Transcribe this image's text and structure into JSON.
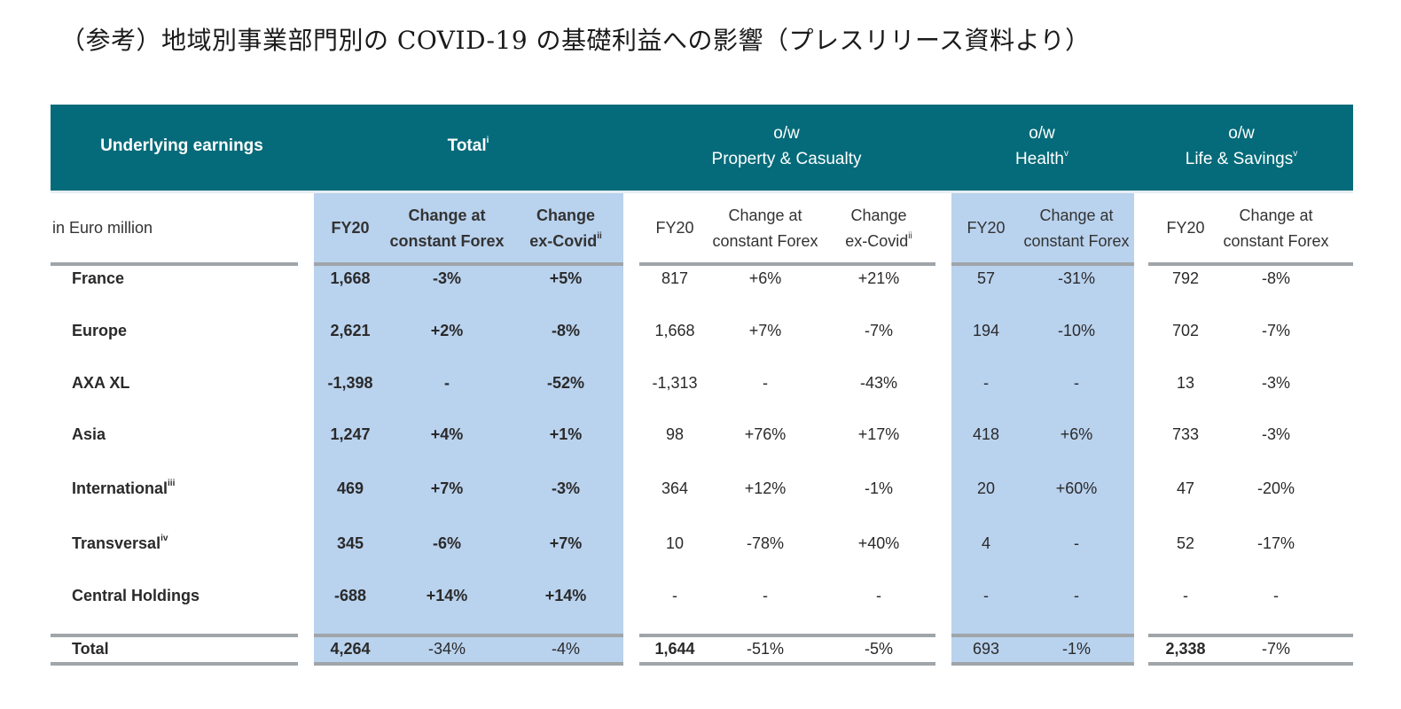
{
  "title": "（参考）地域別事業部門別の COVID-19 の基礎利益への影響（プレスリリース資料より）",
  "header": {
    "underlying": "Underlying earnings",
    "total": "Total",
    "total_sup": "i",
    "pc_ow": "o/w",
    "pc": "Property & Casualty",
    "health_ow": "o/w",
    "health": "Health",
    "health_sup": "v",
    "ls_ow": "o/w",
    "ls": "Life & Savings",
    "ls_sup": "v"
  },
  "subheader": {
    "unit": "in Euro million",
    "fy20": "FY20",
    "change_line1": "Change at",
    "change_line2": "constant Forex",
    "excovid_line1": "Change",
    "excovid_line2": "ex-Covid",
    "excovid_sup": "ii"
  },
  "rows": [
    {
      "label": "France",
      "sup": "",
      "cells": [
        "1,668",
        "-3%",
        "+5%",
        "817",
        "+6%",
        "+21%",
        "57",
        "-31%",
        "792",
        "-8%"
      ]
    },
    {
      "label": "Europe",
      "sup": "",
      "cells": [
        "2,621",
        "+2%",
        "-8%",
        "1,668",
        "+7%",
        "-7%",
        "194",
        "-10%",
        "702",
        "-7%"
      ]
    },
    {
      "label": "AXA XL",
      "sup": "",
      "cells": [
        "-1,398",
        "-",
        "-52%",
        "-1,313",
        "-",
        "-43%",
        "-",
        "-",
        "13",
        "-3%"
      ]
    },
    {
      "label": "Asia",
      "sup": "",
      "cells": [
        "1,247",
        "+4%",
        "+1%",
        "98",
        "+76%",
        "+17%",
        "418",
        "+6%",
        "733",
        "-3%"
      ]
    },
    {
      "label": "International",
      "sup": "iii",
      "cells": [
        "469",
        "+7%",
        "-3%",
        "364",
        "+12%",
        "-1%",
        "20",
        "+60%",
        "47",
        "-20%"
      ]
    },
    {
      "label": "Transversal",
      "sup": "iv",
      "cells": [
        "345",
        "-6%",
        "+7%",
        "10",
        "-78%",
        "+40%",
        "4",
        "-",
        "52",
        "-17%"
      ]
    },
    {
      "label": "Central Holdings",
      "sup": "",
      "cells": [
        "-688",
        "+14%",
        "+14%",
        "-",
        "-",
        "-",
        "-",
        "-",
        "-",
        "-"
      ]
    }
  ],
  "total_row": {
    "label": "Total",
    "cells": [
      "4,264",
      "-34%",
      "-4%",
      "1,644",
      "-51%",
      "-5%",
      "693",
      "-1%",
      "2,338",
      "-7%"
    ]
  },
  "colors": {
    "teal": "#056b7a",
    "highlight": "#b9d2ee",
    "rule": "#9fa5a9"
  }
}
